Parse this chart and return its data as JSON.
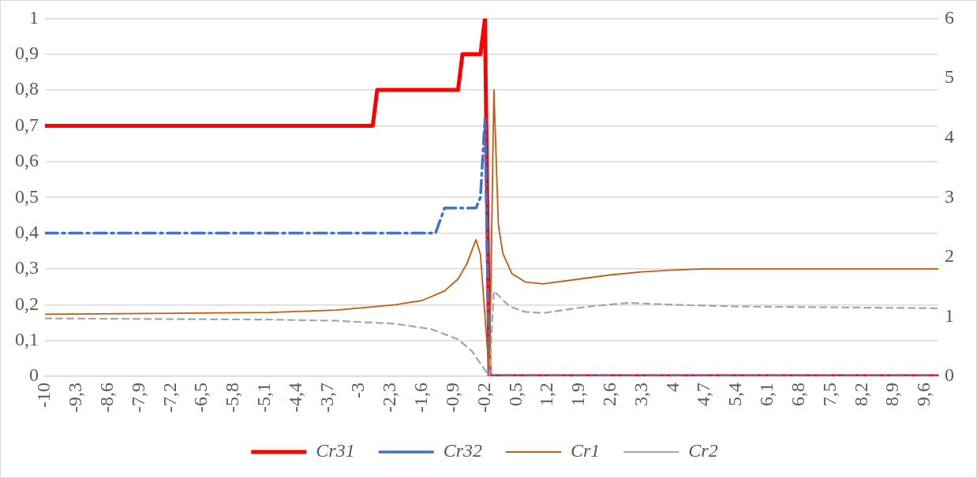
{
  "chart_data": {
    "type": "line",
    "legend": "bottom",
    "grid": "y",
    "marker": "none",
    "xlim": [
      -10,
      9.9
    ],
    "xticks": [
      {
        "value": -10,
        "label": "-10"
      },
      {
        "value": -9.3,
        "label": "-9,3"
      },
      {
        "value": -8.6,
        "label": "-8,6"
      },
      {
        "value": -7.9,
        "label": "-7,9"
      },
      {
        "value": -7.2,
        "label": "-7,2"
      },
      {
        "value": -6.5,
        "label": "-6,5"
      },
      {
        "value": -5.8,
        "label": "-5,8"
      },
      {
        "value": -5.1,
        "label": "-5,1"
      },
      {
        "value": -4.4,
        "label": "-4,4"
      },
      {
        "value": -3.7,
        "label": "-3,7"
      },
      {
        "value": -3,
        "label": "-3"
      },
      {
        "value": -2.3,
        "label": "-2,3"
      },
      {
        "value": -1.6,
        "label": "-1,6"
      },
      {
        "value": -0.9,
        "label": "-0,9"
      },
      {
        "value": -0.2,
        "label": "-0,2"
      },
      {
        "value": 0.5,
        "label": "0,5"
      },
      {
        "value": 1.2,
        "label": "1,2"
      },
      {
        "value": 1.9,
        "label": "1,9"
      },
      {
        "value": 2.6,
        "label": "2,6"
      },
      {
        "value": 3.3,
        "label": "3,3"
      },
      {
        "value": 4,
        "label": "4"
      },
      {
        "value": 4.7,
        "label": "4,7"
      },
      {
        "value": 5.4,
        "label": "5,4"
      },
      {
        "value": 6.1,
        "label": "6,1"
      },
      {
        "value": 6.8,
        "label": "6,8"
      },
      {
        "value": 7.5,
        "label": "7,5"
      },
      {
        "value": 8.2,
        "label": "8,2"
      },
      {
        "value": 8.9,
        "label": "8,9"
      },
      {
        "value": 9.6,
        "label": "9,6"
      }
    ],
    "ylim": [
      0,
      1
    ],
    "yticks": [
      0,
      {
        "value": 0.1,
        "label": "0,1"
      },
      {
        "value": 0.2,
        "label": "0,2"
      },
      {
        "value": 0.3,
        "label": "0,3"
      },
      {
        "value": 0.4,
        "label": "0,4"
      },
      {
        "value": 0.5,
        "label": "0,5"
      },
      {
        "value": 0.6,
        "label": "0,6"
      },
      {
        "value": 0.7,
        "label": "0,7"
      },
      {
        "value": 0.8,
        "label": "0,8"
      },
      {
        "value": 0.9,
        "label": "0,9"
      },
      1
    ],
    "y2lim": [
      0,
      6
    ],
    "y2ticks": [
      0,
      1,
      2,
      3,
      4,
      5,
      6
    ],
    "series": [
      {
        "name": "Cr31",
        "color": "#ff0000",
        "line_style": "solid",
        "x": [
          -10,
          -2.7,
          -2.6,
          -0.8,
          -0.7,
          -0.3,
          -0.2,
          -0.1,
          9.9
        ],
        "values": [
          0.7,
          0.7,
          0.8,
          0.8,
          0.9,
          0.9,
          1,
          0,
          0
        ]
      },
      {
        "name": "Cr32",
        "color": "#4472c4",
        "line_style": "dashdot",
        "x": [
          -10,
          -1.3,
          -1.1,
          -0.4,
          -0.3,
          -0.2,
          -0.1,
          9.9
        ],
        "values": [
          0.4,
          0.4,
          0.47,
          0.47,
          0.5,
          0.72,
          0,
          0
        ]
      },
      {
        "name": "Cr1",
        "color": "#c55a11",
        "line_style": "solid",
        "axis": "y2",
        "x": [
          -10,
          -5,
          -3.5,
          -2.2,
          -1.6,
          -1.1,
          -0.8,
          -0.6,
          -0.4,
          -0.3,
          -0.1,
          0,
          0.1,
          0.2,
          0.4,
          0.7,
          1.1,
          2.1,
          2.6,
          3.3,
          4,
          4.7,
          9.9
        ],
        "values": [
          1.04,
          1.07,
          1.11,
          1.2,
          1.27,
          1.43,
          1.63,
          1.89,
          2.29,
          2.04,
          0,
          4.8,
          2.53,
          2.06,
          1.72,
          1.58,
          1.55,
          1.65,
          1.7,
          1.75,
          1.78,
          1.8,
          1.8
        ]
      },
      {
        "name": "Cr2",
        "color": "#a5a5a5",
        "line_style": "dashed",
        "axis": "y2",
        "x": [
          -10,
          -5,
          -3.5,
          -2.2,
          -1.4,
          -0.8,
          -0.5,
          -0.1,
          0,
          0.35,
          0.7,
          1.1,
          2.1,
          3,
          4,
          5.4,
          9.9
        ],
        "values": [
          0.97,
          0.95,
          0.93,
          0.88,
          0.79,
          0.62,
          0.43,
          0,
          1.43,
          1.17,
          1.08,
          1.06,
          1.17,
          1.23,
          1.2,
          1.17,
          1.14
        ]
      }
    ]
  }
}
